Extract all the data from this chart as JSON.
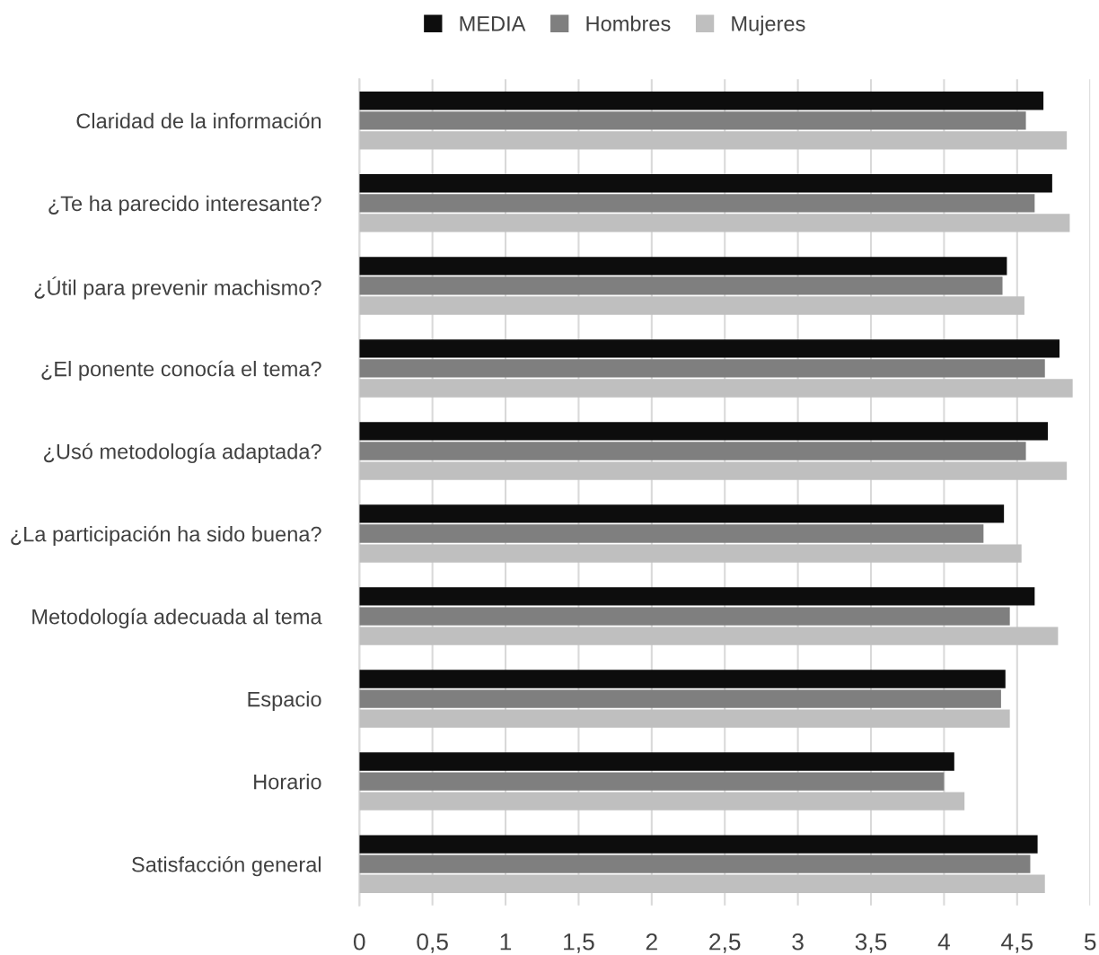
{
  "chart_data": {
    "type": "bar",
    "orientation": "horizontal",
    "categories": [
      "Claridad de la información",
      "¿Te ha parecido interesante?",
      "¿Útil para prevenir machismo?",
      "¿El ponente conocía el tema?",
      "¿Usó metodología adaptada?",
      "¿La participación ha sido buena?",
      "Metodología adecuada al tema",
      "Espacio",
      "Horario",
      "Satisfacción general"
    ],
    "series": [
      {
        "name": "MEDIA",
        "color": "#0d0d0d",
        "values": [
          4.68,
          4.74,
          4.43,
          4.79,
          4.71,
          4.41,
          4.62,
          4.42,
          4.07,
          4.64
        ]
      },
      {
        "name": "Hombres",
        "color": "#7f7f7f",
        "values": [
          4.56,
          4.62,
          4.4,
          4.69,
          4.56,
          4.27,
          4.45,
          4.39,
          4.0,
          4.59
        ]
      },
      {
        "name": "Mujeres",
        "color": "#bfbfbf",
        "values": [
          4.84,
          4.86,
          4.55,
          4.88,
          4.84,
          4.53,
          4.78,
          4.45,
          4.14,
          4.69
        ]
      }
    ],
    "xlim": [
      0,
      5
    ],
    "xticks": [
      0,
      {
        "value": 0.5,
        "label": "0,5"
      },
      1,
      {
        "value": 1.5,
        "label": "1,5"
      },
      2,
      {
        "value": 2.5,
        "label": "2,5"
      },
      3,
      {
        "value": 3.5,
        "label": "3,5"
      },
      4,
      {
        "value": 4.5,
        "label": "4,5"
      },
      5
    ],
    "grid": "x",
    "legend": "top"
  }
}
